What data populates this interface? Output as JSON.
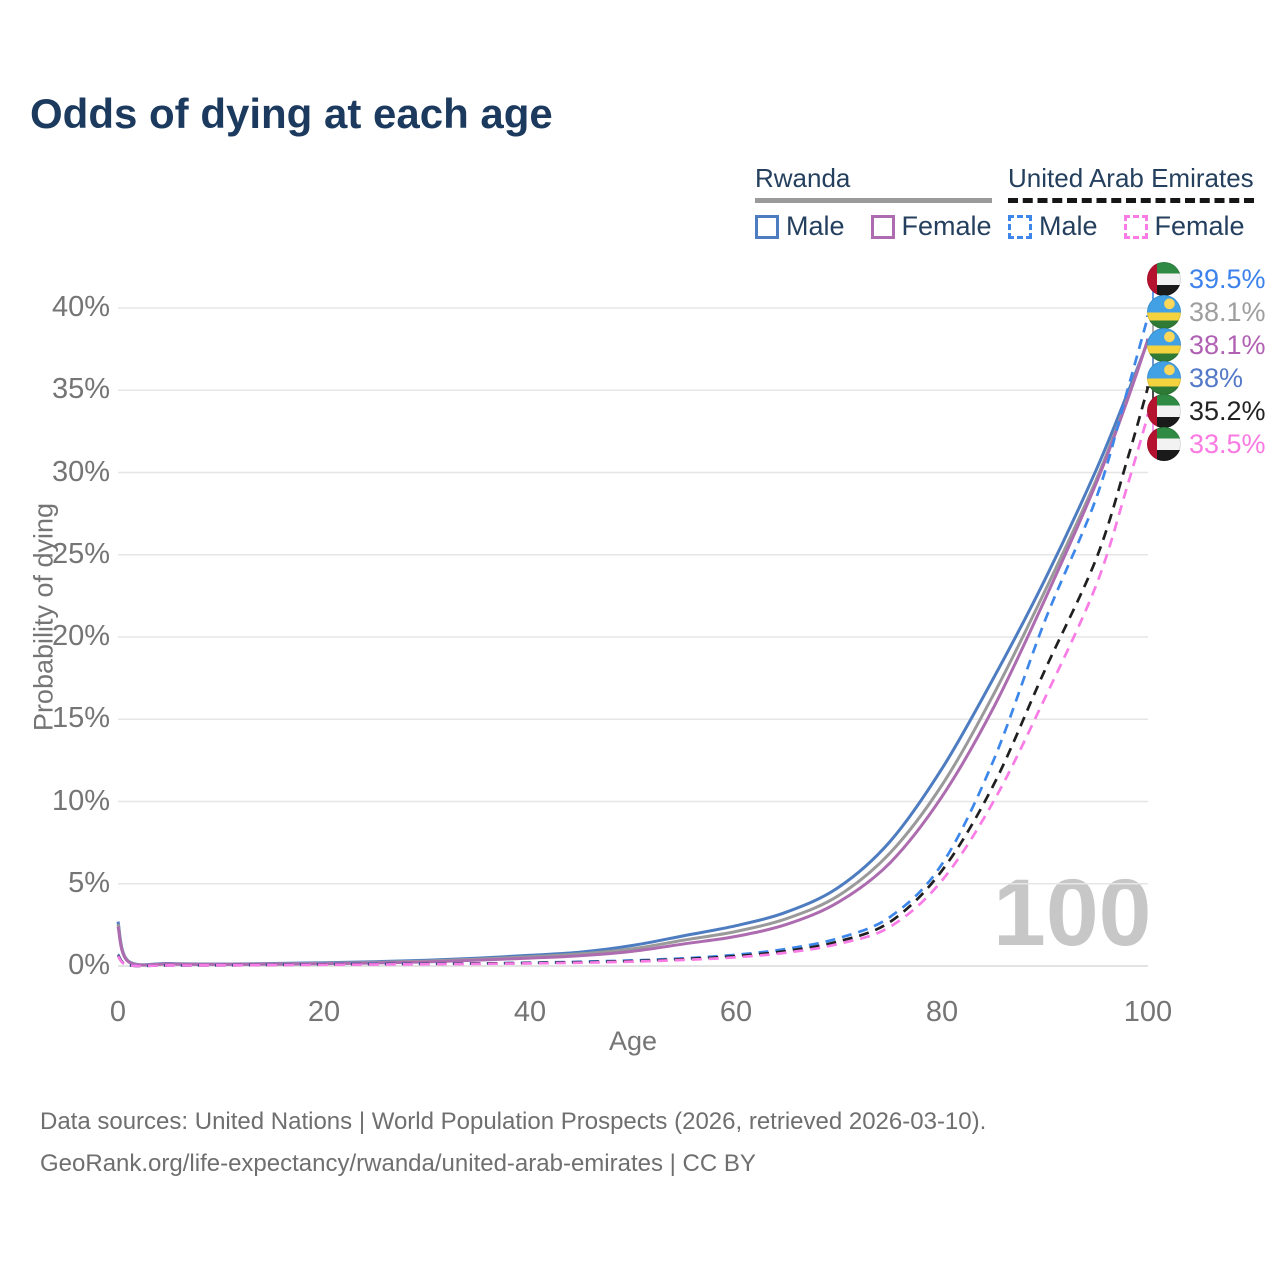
{
  "title": "Odds of dying at each age",
  "legend": {
    "groups": [
      {
        "country": "Rwanda",
        "underline_color": "#9a9a9a",
        "underline_style": "solid",
        "items": [
          {
            "label": "Male",
            "color": "#4d7cc0",
            "style": "solid"
          },
          {
            "label": "Female",
            "color": "#ae6cb0",
            "style": "solid"
          }
        ]
      },
      {
        "country": "United Arab Emirates",
        "underline_color": "#161616",
        "underline_style": "dashed",
        "items": [
          {
            "label": "Male",
            "color": "#3d87ea",
            "style": "dashed"
          },
          {
            "label": "Female",
            "color": "#f97ce6",
            "style": "dashed"
          }
        ]
      }
    ]
  },
  "watermark": "100",
  "footer": {
    "line1": "Data sources: United Nations | World Population Prospects (2026, retrieved 2026-03-10).",
    "line2": "GeoRank.org/life-expectancy/rwanda/united-arab-emirates | CC BY"
  },
  "chart_data": {
    "type": "line",
    "title": "Odds of dying at each age",
    "xlabel": "Age",
    "ylabel": "Probability of dying",
    "xlim": [
      0,
      100
    ],
    "ylim": [
      0,
      40
    ],
    "grid": "horizontal",
    "x_ticks": [
      0,
      20,
      40,
      60,
      80,
      100
    ],
    "y_ticks": [
      "0%",
      "5%",
      "10%",
      "15%",
      "20%",
      "25%",
      "30%",
      "35%",
      "40%"
    ],
    "x": [
      0,
      1,
      5,
      10,
      15,
      20,
      25,
      30,
      35,
      40,
      45,
      50,
      55,
      60,
      65,
      70,
      75,
      80,
      85,
      90,
      95,
      98,
      100
    ],
    "series": [
      {
        "name": "Rwanda Male",
        "country": "Rwanda",
        "sex": "Male",
        "style": "solid",
        "color": "#4d7cc0",
        "values": [
          2.7,
          0.3,
          0.15,
          0.12,
          0.15,
          0.2,
          0.26,
          0.35,
          0.48,
          0.65,
          0.85,
          1.25,
          1.85,
          2.45,
          3.3,
          4.8,
          7.6,
          12.0,
          17.5,
          23.5,
          30.2,
          34.8,
          38.0
        ]
      },
      {
        "name": "Rwanda Both sexes",
        "country": "Rwanda",
        "sex": "Both",
        "style": "solid",
        "color": "#9a9a9a",
        "values": [
          2.55,
          0.28,
          0.13,
          0.11,
          0.13,
          0.17,
          0.22,
          0.3,
          0.42,
          0.56,
          0.74,
          1.05,
          1.58,
          2.1,
          2.9,
          4.3,
          6.9,
          11.0,
          16.5,
          22.8,
          29.6,
          34.5,
          38.1
        ]
      },
      {
        "name": "Rwanda Female",
        "country": "Rwanda",
        "sex": "Female",
        "style": "solid",
        "color": "#ae6cb0",
        "values": [
          2.4,
          0.26,
          0.12,
          0.1,
          0.11,
          0.14,
          0.18,
          0.25,
          0.36,
          0.48,
          0.63,
          0.9,
          1.35,
          1.8,
          2.55,
          3.9,
          6.3,
          10.3,
          15.7,
          22.3,
          29.4,
          34.4,
          38.1
        ]
      },
      {
        "name": "United Arab Emirates Male",
        "country": "United Arab Emirates",
        "sex": "Male",
        "style": "dashed",
        "color": "#3d87ea",
        "values": [
          0.7,
          0.06,
          0.04,
          0.05,
          0.08,
          0.12,
          0.13,
          0.14,
          0.16,
          0.2,
          0.26,
          0.34,
          0.47,
          0.68,
          1.05,
          1.7,
          3.0,
          6.2,
          12.5,
          21.0,
          28.5,
          35.0,
          39.5
        ]
      },
      {
        "name": "United Arab Emirates Both sexes",
        "country": "United Arab Emirates",
        "sex": "Both",
        "style": "dashed",
        "color": "#1f1f1f",
        "values": [
          0.65,
          0.055,
          0.04,
          0.045,
          0.07,
          0.1,
          0.11,
          0.13,
          0.15,
          0.18,
          0.23,
          0.3,
          0.42,
          0.6,
          0.92,
          1.5,
          2.7,
          5.8,
          11.0,
          18.0,
          24.8,
          30.8,
          35.2
        ]
      },
      {
        "name": "United Arab Emirates Female",
        "country": "United Arab Emirates",
        "sex": "Female",
        "style": "dashed",
        "color": "#f97ce6",
        "values": [
          0.6,
          0.05,
          0.035,
          0.04,
          0.06,
          0.08,
          0.09,
          0.11,
          0.13,
          0.16,
          0.2,
          0.27,
          0.37,
          0.53,
          0.82,
          1.35,
          2.4,
          5.2,
          10.0,
          16.3,
          23.2,
          29.2,
          33.5
        ]
      }
    ],
    "end_labels": [
      {
        "value": "39.5%",
        "series": "United Arab Emirates Male",
        "flag": "are",
        "color": "#3d82ec"
      },
      {
        "value": "38.1%",
        "series": "Rwanda Both sexes",
        "flag": "rwa",
        "color": "#9e9e9e"
      },
      {
        "value": "38.1%",
        "series": "Rwanda Female",
        "flag": "rwa",
        "color": "#b161b3"
      },
      {
        "value": "38%",
        "series": "Rwanda Male",
        "flag": "rwa",
        "color": "#5479c7"
      },
      {
        "value": "35.2%",
        "series": "United Arab Emirates Both sexes",
        "flag": "are",
        "color": "#222222"
      },
      {
        "value": "33.5%",
        "series": "United Arab Emirates Female",
        "flag": "are",
        "color": "#fa7ae2"
      }
    ]
  }
}
